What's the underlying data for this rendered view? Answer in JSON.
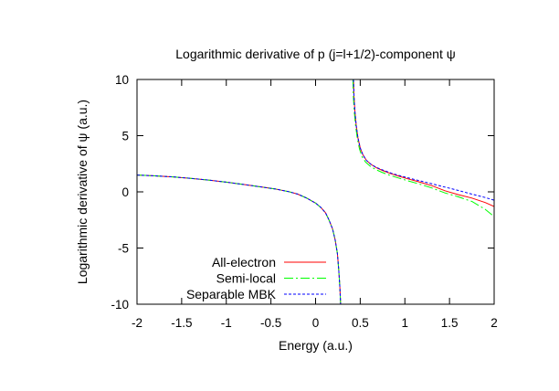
{
  "chart_data": {
    "type": "line",
    "title": "Logarithmic derivative of p (j=l+1/2)-component ψ",
    "xlabel": "Energy (a.u.)",
    "ylabel": "Logarithmic derivative of ψ (a.u.)",
    "xlim": [
      -2,
      2
    ],
    "ylim": [
      -10,
      10
    ],
    "xticks": {
      "values": [
        -2,
        -1.5,
        -1,
        -0.5,
        0,
        0.5,
        1,
        1.5,
        2
      ],
      "labels": [
        "-2",
        "-1.5",
        "-1",
        "-0.5",
        "0",
        "0.5",
        "1",
        "1.5",
        "2"
      ]
    },
    "yticks": {
      "values": [
        -10,
        -5,
        0,
        5,
        10
      ],
      "labels": [
        "-10",
        "-5",
        "0",
        "5",
        "10"
      ]
    },
    "grid": false,
    "frame_color": "#000000",
    "background_color": "#ffffff",
    "legend": {
      "position": "inside-bottom-center",
      "entries": [
        "All-electron",
        "Semi-local",
        "Separable MBK"
      ]
    },
    "series": [
      {
        "name": "All-electron",
        "color": "#ff0000",
        "dash": "solid",
        "segments": [
          {
            "x": [
              -2.0,
              -1.8,
              -1.6,
              -1.4,
              -1.2,
              -1.0,
              -0.8,
              -0.6,
              -0.45,
              -0.3,
              -0.2,
              -0.1,
              0.0,
              0.06,
              0.11,
              0.15,
              0.19,
              0.22,
              0.245,
              0.26,
              0.272,
              0.28
            ],
            "y": [
              1.5,
              1.42,
              1.33,
              1.2,
              1.05,
              0.86,
              0.65,
              0.42,
              0.25,
              0.02,
              -0.2,
              -0.55,
              -1.0,
              -1.4,
              -1.85,
              -2.5,
              -3.3,
              -4.3,
              -5.5,
              -7.0,
              -8.5,
              -10.0
            ]
          },
          {
            "x": [
              0.425,
              0.43,
              0.44,
              0.455,
              0.475,
              0.5,
              0.53,
              0.57,
              0.62,
              0.68,
              0.75,
              0.85,
              0.95,
              1.05,
              1.15,
              1.3,
              1.45,
              1.6,
              1.75,
              1.9,
              2.0
            ],
            "y": [
              10.0,
              8.6,
              7.2,
              5.9,
              4.8,
              3.9,
              3.3,
              2.8,
              2.45,
              2.15,
              1.9,
              1.6,
              1.35,
              1.12,
              0.9,
              0.55,
              0.1,
              -0.25,
              -0.55,
              -0.95,
              -1.3
            ]
          }
        ]
      },
      {
        "name": "Semi-local",
        "color": "#00ff00",
        "dash": "dash-dot",
        "segments": [
          {
            "x": [
              -2.0,
              -1.8,
              -1.6,
              -1.4,
              -1.2,
              -1.0,
              -0.8,
              -0.6,
              -0.45,
              -0.3,
              -0.2,
              -0.1,
              0.0,
              0.06,
              0.11,
              0.15,
              0.19,
              0.22,
              0.245,
              0.26,
              0.272,
              0.28
            ],
            "y": [
              1.5,
              1.42,
              1.33,
              1.2,
              1.05,
              0.86,
              0.65,
              0.42,
              0.25,
              0.02,
              -0.2,
              -0.55,
              -1.0,
              -1.4,
              -1.85,
              -2.5,
              -3.3,
              -4.3,
              -5.5,
              -7.0,
              -8.5,
              -10.0
            ]
          },
          {
            "x": [
              0.418,
              0.423,
              0.433,
              0.448,
              0.468,
              0.492,
              0.52,
              0.56,
              0.61,
              0.67,
              0.74,
              0.84,
              0.94,
              1.04,
              1.15,
              1.3,
              1.45,
              1.6,
              1.75,
              1.9,
              2.0
            ],
            "y": [
              10.0,
              8.6,
              7.2,
              5.9,
              4.75,
              3.8,
              3.15,
              2.65,
              2.3,
              2.0,
              1.75,
              1.45,
              1.2,
              0.97,
              0.72,
              0.35,
              -0.1,
              -0.45,
              -0.85,
              -1.55,
              -2.2
            ]
          }
        ]
      },
      {
        "name": "Separable MBK",
        "color": "#0000ff",
        "dash": "dotted",
        "segments": [
          {
            "x": [
              -2.0,
              -1.8,
              -1.6,
              -1.4,
              -1.2,
              -1.0,
              -0.8,
              -0.6,
              -0.45,
              -0.3,
              -0.2,
              -0.1,
              0.0,
              0.06,
              0.11,
              0.15,
              0.19,
              0.22,
              0.245,
              0.26,
              0.272,
              0.28
            ],
            "y": [
              1.5,
              1.42,
              1.33,
              1.2,
              1.05,
              0.86,
              0.65,
              0.42,
              0.25,
              0.02,
              -0.2,
              -0.55,
              -1.0,
              -1.4,
              -1.85,
              -2.5,
              -3.3,
              -4.3,
              -5.5,
              -7.0,
              -8.5,
              -10.0
            ]
          },
          {
            "x": [
              0.425,
              0.43,
              0.44,
              0.455,
              0.475,
              0.5,
              0.53,
              0.57,
              0.62,
              0.68,
              0.75,
              0.85,
              0.95,
              1.05,
              1.15,
              1.3,
              1.45,
              1.6,
              1.75,
              1.9,
              2.0
            ],
            "y": [
              10.0,
              8.6,
              7.2,
              5.9,
              4.8,
              3.9,
              3.3,
              2.8,
              2.45,
              2.18,
              1.95,
              1.65,
              1.42,
              1.22,
              1.02,
              0.72,
              0.42,
              0.12,
              -0.2,
              -0.5,
              -0.75
            ]
          }
        ]
      }
    ]
  }
}
